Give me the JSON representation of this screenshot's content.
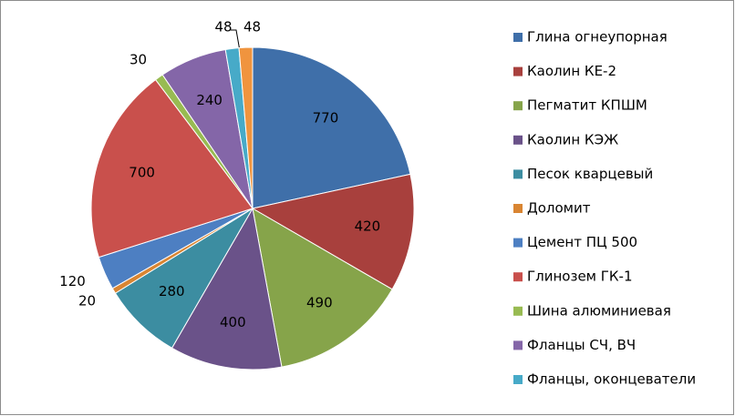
{
  "chart_data": {
    "type": "pie",
    "categories": [
      "Глина огнеупорная",
      "Каолин КЕ-2",
      "Пегматит КПШМ",
      "Каолин КЭЖ",
      "Песок кварцевый",
      "Доломит",
      "Цемент ПЦ 500",
      "Глинозем ГК-1",
      "Шина алюминиевая",
      "Фланцы СЧ, ВЧ",
      "Фланцы, оконцеватели",
      null
    ],
    "values": [
      770,
      420,
      490,
      400,
      280,
      20,
      120,
      700,
      30,
      240,
      48,
      48
    ],
    "colors": [
      "#3f6fa9",
      "#a8403d",
      "#86a44a",
      "#6a5289",
      "#3c8da1",
      "#d98532",
      "#4d7fc2",
      "#c9504c",
      "#98bb52",
      "#8466a8",
      "#47aac8",
      "#f0943e"
    ],
    "legend": "right"
  }
}
